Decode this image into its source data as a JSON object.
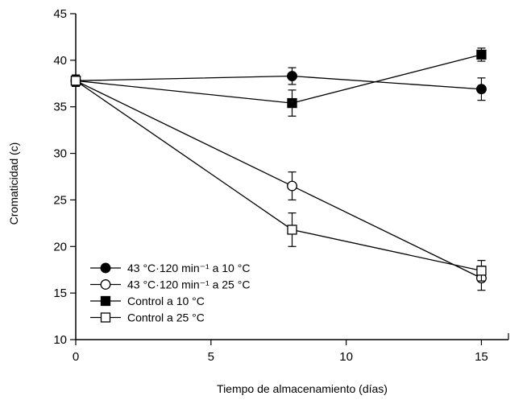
{
  "chart_data": {
    "type": "line",
    "title": "",
    "xlabel": "Tiempo de almacenamiento (días)",
    "ylabel": "Cromaticidad (c)",
    "xlim": [
      0,
      16
    ],
    "ylim": [
      10,
      45
    ],
    "x_ticks": [
      0,
      5,
      10,
      15
    ],
    "y_ticks": [
      10,
      15,
      20,
      25,
      30,
      35,
      40,
      45
    ],
    "grid": false,
    "legend_placement": "bottom-left",
    "series": [
      {
        "name": "43 °C·120 min⁻¹ a 10 °C",
        "marker": "filled-circle",
        "color": "#000000",
        "points": [
          {
            "x": 0,
            "y": 37.8,
            "err": 0.6
          },
          {
            "x": 8,
            "y": 38.3,
            "err": 0.9
          },
          {
            "x": 15,
            "y": 36.9,
            "err": 1.2
          }
        ]
      },
      {
        "name": "43 °C·120 min⁻¹ a 25 °C",
        "marker": "open-circle",
        "color": "#000000",
        "points": [
          {
            "x": 0,
            "y": 37.8,
            "err": 0.6
          },
          {
            "x": 8,
            "y": 26.5,
            "err": 1.5
          },
          {
            "x": 15,
            "y": 16.6,
            "err": 1.3
          }
        ]
      },
      {
        "name": "Control a 10 °C",
        "marker": "filled-square",
        "color": "#000000",
        "points": [
          {
            "x": 0,
            "y": 37.8,
            "err": 0.6
          },
          {
            "x": 8,
            "y": 35.4,
            "err": 1.4
          },
          {
            "x": 15,
            "y": 40.6,
            "err": 0.7
          }
        ]
      },
      {
        "name": "Control a 25 °C",
        "marker": "open-square",
        "color": "#000000",
        "points": [
          {
            "x": 0,
            "y": 37.8,
            "err": 0.6
          },
          {
            "x": 8,
            "y": 21.8,
            "err": 1.8
          },
          {
            "x": 15,
            "y": 17.4,
            "err": 1.1
          }
        ]
      }
    ]
  }
}
